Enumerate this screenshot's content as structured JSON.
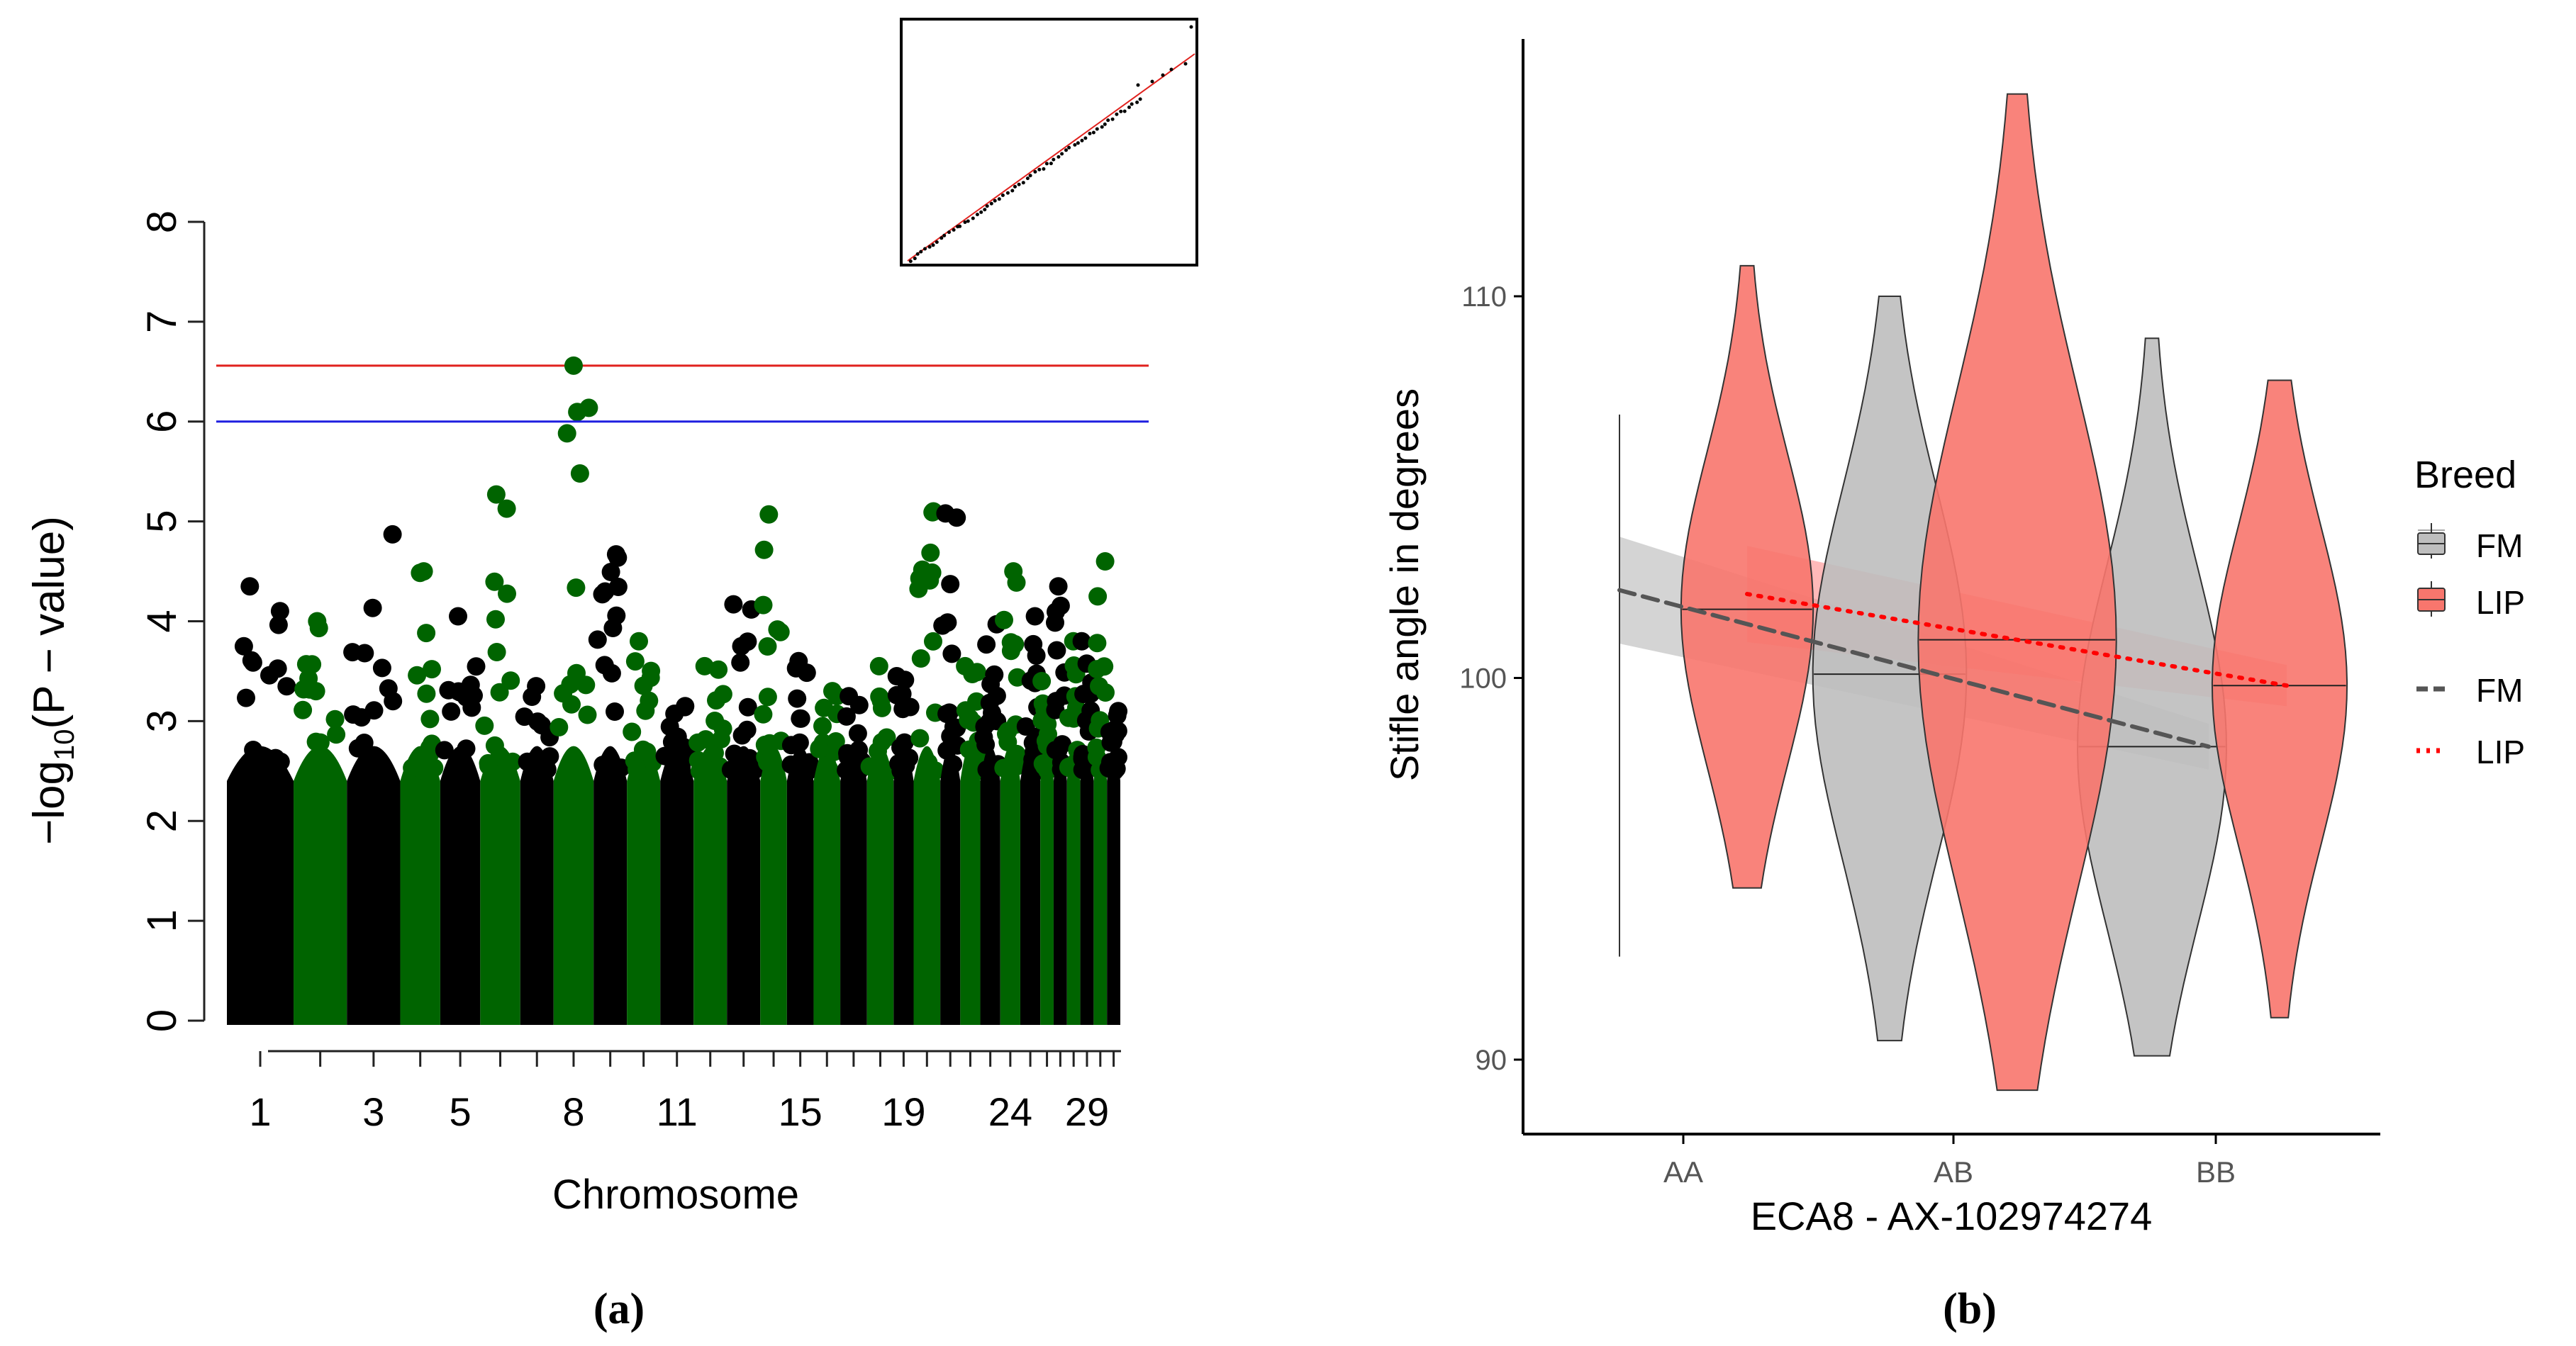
{
  "figure": {
    "panel_labels": [
      "(a)",
      "(b)"
    ]
  },
  "chart_data": [
    {
      "type": "scatter",
      "panel": "(a)",
      "xlabel": "Chromosome",
      "ylabel_main": "−log",
      "ylabel_sub": "10",
      "ylabel_tail": "(P − value)",
      "ylim": [
        0,
        8
      ],
      "yticks": [
        0,
        1,
        2,
        3,
        4,
        5,
        6,
        7,
        8
      ],
      "xtick_labels": [
        "1",
        "3",
        "5",
        "8",
        "11",
        "15",
        "19",
        "24",
        "29"
      ],
      "chromosomes": [
        1,
        2,
        3,
        4,
        5,
        6,
        7,
        8,
        9,
        10,
        11,
        12,
        13,
        14,
        15,
        16,
        17,
        18,
        19,
        20,
        21,
        22,
        23,
        24,
        25,
        26,
        27,
        28,
        29,
        30,
        31
      ],
      "chromosome_max": [
        4.35,
        4.0,
        4.87,
        4.5,
        4.05,
        5.27,
        3.35,
        6.56,
        4.67,
        3.8,
        3.15,
        3.55,
        4.17,
        5.07,
        3.6,
        3.3,
        3.25,
        3.55,
        3.45,
        5.1,
        5.08,
        3.55,
        3.97,
        4.5,
        4.05,
        3.4,
        4.35,
        3.8,
        3.8,
        4.6,
        3.1
      ],
      "colors": {
        "odd": "#000000",
        "even": "#006400"
      },
      "thresholds": [
        {
          "value": 6.56,
          "color": "#e0211d"
        },
        {
          "value": 6.0,
          "color": "#1f1fe0"
        }
      ],
      "significant_snp": {
        "chromosome": 8,
        "value": 6.56
      },
      "inset": {
        "type": "qq-plot",
        "line_color": "#e0211d",
        "point_color": "#000000"
      }
    },
    {
      "type": "violin",
      "panel": "(b)",
      "xlabel": "ECA8 - AX-102974274",
      "ylabel": "Stifle angle in degrees",
      "categories": [
        "AA",
        "AB",
        "BB"
      ],
      "ylim": [
        88,
        116
      ],
      "yticks": [
        90,
        100,
        110
      ],
      "legend": {
        "title": "Breed",
        "position": "right",
        "entries": [
          "FM",
          "LIP",
          "FM",
          "LIP"
        ]
      },
      "series": [
        {
          "name": "FM",
          "color": "#bebebe",
          "violins": [
            {
              "category": "AA",
              "min": 92.7,
              "max": 106.9,
              "median": 102.3
            },
            {
              "category": "AB",
              "min": 90.5,
              "max": 110.0,
              "median": 100.1
            },
            {
              "category": "BB",
              "min": 90.1,
              "max": 108.9,
              "median": 98.2
            }
          ],
          "trend": {
            "start": 102.3,
            "end": 98.2,
            "band": 1.0,
            "line_color": "#555555",
            "style": "dashed"
          }
        },
        {
          "name": "LIP",
          "color": "#f8766d",
          "violins": [
            {
              "category": "AA",
              "min": 94.5,
              "max": 110.8,
              "median": 101.8
            },
            {
              "category": "AB",
              "min": 89.2,
              "max": 115.3,
              "median": 101.0
            },
            {
              "category": "BB",
              "min": 91.1,
              "max": 107.8,
              "median": 99.8
            }
          ],
          "trend": {
            "start": 102.2,
            "end": 99.8,
            "band": 0.9,
            "line_color": "#ff0000",
            "style": "dotted"
          }
        }
      ]
    }
  ]
}
